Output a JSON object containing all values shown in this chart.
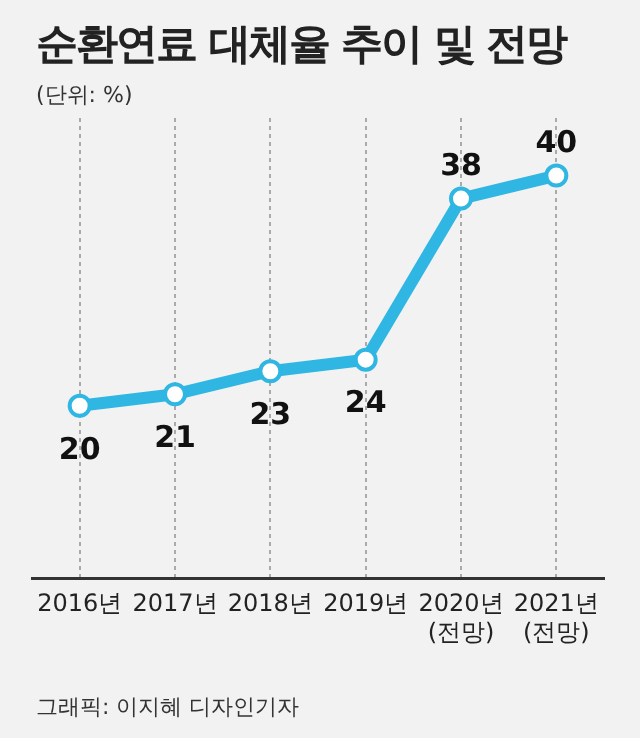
{
  "chart_data": {
    "type": "line",
    "title": "순환연료 대체율 추이 및 전망",
    "subtitle": "(단위: %)",
    "categories": [
      "2016년",
      "2017년",
      "2018년",
      "2019년",
      "2020년\n(전망)",
      "2021년\n(전망)"
    ],
    "series": [
      {
        "color": "#2fb6e3",
        "values": [
          20,
          21,
          23,
          24,
          38,
          40
        ]
      }
    ],
    "data_labels": true,
    "marker": "circle",
    "grid": "x",
    "legend": false,
    "annotations": [
      "그래픽: 이지혜 디자인기자"
    ]
  }
}
